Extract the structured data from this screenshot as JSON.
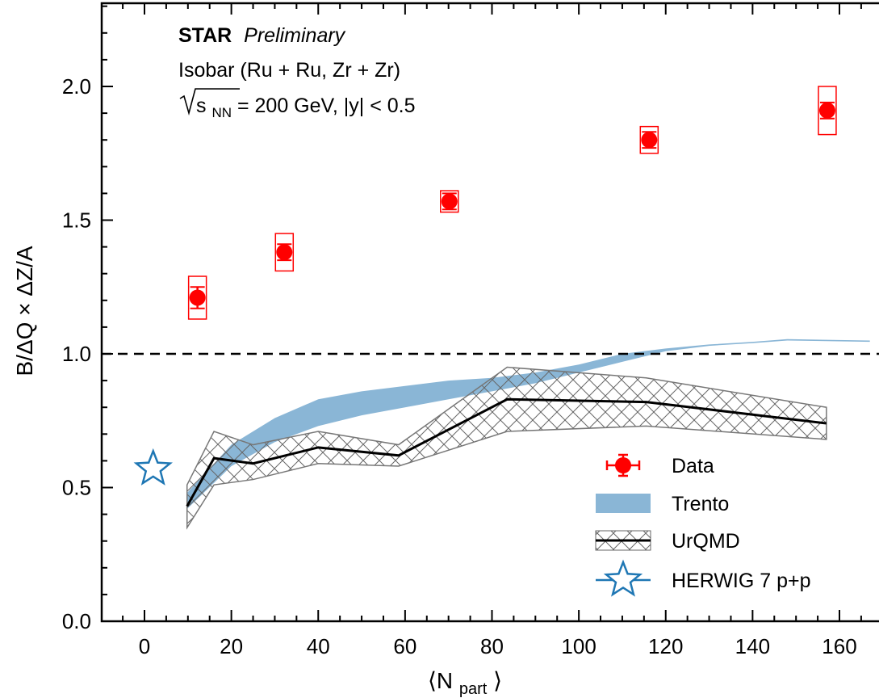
{
  "chart_data": {
    "type": "scatter",
    "title": "",
    "annotations": {
      "experiment": "STAR",
      "status": "Preliminary",
      "system": "Isobar (Ru + Ru, Zr + Zr)",
      "energy_prefix": "s",
      "energy_sub": "NN",
      "energy_suffix": " = 200 GeV, |y| < 0.5"
    },
    "xlabel": "⟨N",
    "xlabel_sub": "part",
    "xlabel_suffix": "⟩",
    "ylabel": "B/ΔQ × ΔZ/A",
    "xlim": [
      -10,
      168
    ],
    "ylim": [
      0.0,
      2.3
    ],
    "x_ticks": [
      0,
      20,
      40,
      60,
      80,
      100,
      120,
      140,
      160
    ],
    "y_ticks": [
      0.0,
      0.5,
      1.0,
      1.5,
      2.0
    ],
    "y_tick_labels": [
      "0.0",
      "0.5",
      "1.0",
      "1.5",
      "2.0"
    ],
    "reference_line": 1.0,
    "series": [
      {
        "name": "Data",
        "kind": "points",
        "color": "#ff0000",
        "points": [
          {
            "x": 12.2,
            "y": 1.21,
            "stat": 0.04,
            "sys": 0.08
          },
          {
            "x": 32.2,
            "y": 1.38,
            "stat": 0.03,
            "sys": 0.07
          },
          {
            "x": 70.2,
            "y": 1.57,
            "stat": 0.03,
            "sys": 0.04
          },
          {
            "x": 116.2,
            "y": 1.8,
            "stat": 0.03,
            "sys": 0.05
          },
          {
            "x": 157.2,
            "y": 1.91,
            "stat": 0.03,
            "sys": 0.09
          }
        ]
      },
      {
        "name": "Trento",
        "kind": "band",
        "color": "#8ab6d6",
        "x": [
          9.8,
          20,
          30,
          40,
          50,
          60,
          70,
          80,
          90,
          100,
          110,
          120,
          130,
          140,
          148,
          167
        ],
        "y_low": [
          0.42,
          0.58,
          0.67,
          0.73,
          0.77,
          0.8,
          0.83,
          0.86,
          0.89,
          0.93,
          0.97,
          1.01,
          1.03,
          1.04,
          1.05,
          1.045
        ],
        "y_high": [
          0.48,
          0.66,
          0.76,
          0.83,
          0.86,
          0.88,
          0.9,
          0.91,
          0.93,
          0.96,
          1.0,
          1.02,
          1.035,
          1.045,
          1.055,
          1.05
        ]
      },
      {
        "name": "UrQMD",
        "kind": "line_band",
        "color": "#000000",
        "band_color": "#777777",
        "x": [
          9.8,
          16.0,
          25.0,
          40.0,
          58.5,
          83.5,
          115.5,
          157.0
        ],
        "y": [
          0.43,
          0.61,
          0.59,
          0.65,
          0.62,
          0.83,
          0.82,
          0.74
        ],
        "y_low": [
          0.35,
          0.51,
          0.53,
          0.59,
          0.58,
          0.71,
          0.73,
          0.68
        ],
        "y_high": [
          0.51,
          0.71,
          0.66,
          0.71,
          0.66,
          0.95,
          0.91,
          0.8
        ]
      },
      {
        "name": "HERWIG 7 p+p",
        "kind": "marker",
        "color": "#1f77b4",
        "x": 2.0,
        "y": 0.57
      }
    ],
    "legend": {
      "position": "bottom-right",
      "entries": [
        "Data",
        "Trento",
        "UrQMD",
        "HERWIG 7 p+p"
      ]
    }
  }
}
